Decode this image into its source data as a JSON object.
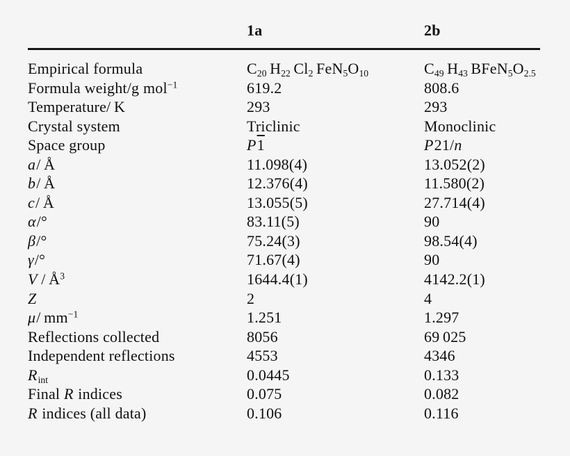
{
  "page": {
    "background": "#f5f5f5",
    "text_color": "#101010",
    "rule_color": "#161616"
  },
  "table": {
    "columns": [
      "",
      "1a",
      "2b"
    ],
    "rows": [
      {
        "label": "Empirical formula",
        "col_1a": "C~20~ H~22~ Cl~2~ FeN~5~O~10~",
        "col_2b": "C~49~ H~43~ BFeN~5~O~2.5~"
      },
      {
        "label": "Formula weight/g mol^−1^",
        "col_1a": "619.2",
        "col_2b": "808.6"
      },
      {
        "label": "Temperature/ K",
        "col_1a": "293",
        "col_2b": "293"
      },
      {
        "label": "Crystal system",
        "col_1a": "Triclinic",
        "col_2b": "Monoclinic"
      },
      {
        "label": "Space group",
        "col_1a": "*P*=1=",
        "col_2b": "*P*21/*n*"
      },
      {
        "label": "*a*/ Å",
        "col_1a": "11.098(4)",
        "col_2b": "13.052(2)"
      },
      {
        "label": "*b*/ Å",
        "col_1a": "12.376(4)",
        "col_2b": "11.580(2)"
      },
      {
        "label": "*c*/ Å",
        "col_1a": "13.055(5)",
        "col_2b": "27.714(4)"
      },
      {
        "label": "*α*/°",
        "col_1a": "83.11(5)",
        "col_2b": "90"
      },
      {
        "label": "*β*/°",
        "col_1a": "75.24(3)",
        "col_2b": "98.54(4)"
      },
      {
        "label": "*γ*/°",
        "col_1a": "71.67(4)",
        "col_2b": "90"
      },
      {
        "label": "*V* / Å^3^",
        "col_1a": "1644.4(1)",
        "col_2b": "4142.2(1)"
      },
      {
        "label": "*Z*",
        "col_1a": "2",
        "col_2b": "4"
      },
      {
        "label": "*μ*/ mm^−1^",
        "col_1a": "1.251",
        "col_2b": "1.297"
      },
      {
        "label": "Reflections collected",
        "col_1a": "8056",
        "col_2b": "69 025"
      },
      {
        "label": "Independent reflections",
        "col_1a": "4553",
        "col_2b": "4346"
      },
      {
        "label": "*R*~int~",
        "col_1a": "0.0445",
        "col_2b": "0.133"
      },
      {
        "label": "Final *R* indices",
        "col_1a": "0.075",
        "col_2b": "0.082"
      },
      {
        "label": "*R* indices (all data)",
        "col_1a": "0.106",
        "col_2b": "0.116"
      }
    ]
  }
}
